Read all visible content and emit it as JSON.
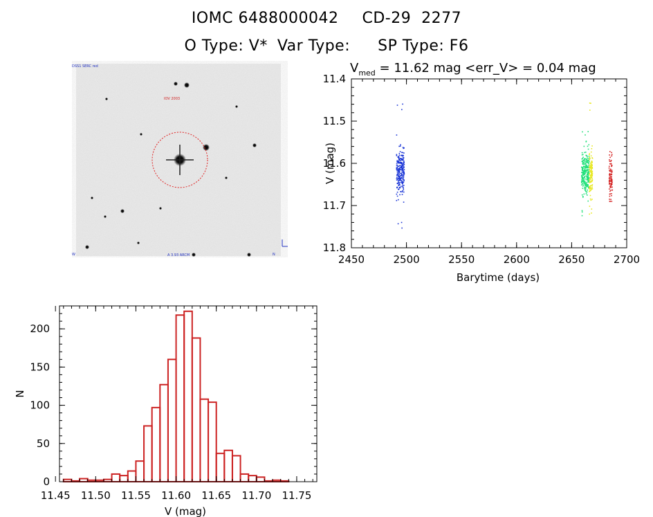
{
  "header": {
    "object_id": "IOMC 6488000042",
    "alt_name": "CD-29  2277",
    "o_type": "O Type: V*",
    "var_type": "Var Type:",
    "sp_type": "SP Type: F6"
  },
  "colors": {
    "blue": "#1a35d6",
    "green": "#22e07a",
    "yellow": "#e8e820",
    "red": "#d42020",
    "hist_bar": "#cc2222",
    "circle": "#e02020"
  },
  "chart_data": [
    {
      "type": "image",
      "description_labels": {
        "top_left": "DSS1 SERC red",
        "object_label": "IOV 2003",
        "bottom_center": "A 3.93 ARCM",
        "bottom_left": "W",
        "bottom_right": "N"
      }
    },
    {
      "type": "scatter",
      "title_v": "V",
      "title_sub": "med",
      "title_rest": " = 11.62 mag <err_V> = 0.04 mag",
      "xlabel": "Barytime (days)",
      "ylabel": "V (mag)",
      "xlim": [
        2450,
        2700
      ],
      "ylim": [
        11.8,
        11.4
      ],
      "xticks": [
        "2450",
        "2500",
        "2550",
        "2600",
        "2650",
        "2700"
      ],
      "yticks": [
        "11.4",
        "11.5",
        "11.6",
        "11.7",
        "11.8"
      ],
      "series": [
        {
          "color": "blue",
          "x_range": [
            2491,
            2498
          ],
          "y_center": 11.62,
          "y_min": 11.455,
          "y_max": 11.76,
          "n": 260
        },
        {
          "color": "green",
          "x_range": [
            2659,
            2666
          ],
          "y_center": 11.62,
          "y_min": 11.52,
          "y_max": 11.73,
          "n": 280
        },
        {
          "color": "yellow",
          "x_range": [
            2666,
            2669
          ],
          "y_center": 11.625,
          "y_min": 11.455,
          "y_max": 11.725,
          "n": 120
        },
        {
          "color": "red",
          "x_range": [
            2684,
            2687
          ],
          "y_center": 11.635,
          "y_min": 11.57,
          "y_max": 11.69,
          "n": 90
        }
      ]
    },
    {
      "type": "bar",
      "xlabel": "V (mag)",
      "ylabel": "N",
      "xlim": [
        11.455,
        11.775
      ],
      "ylim": [
        0,
        230
      ],
      "bin_width": 0.01,
      "xticks": [
        "11.45",
        "11.50",
        "11.55",
        "11.60",
        "11.65",
        "11.70",
        "11.75"
      ],
      "yticks": [
        "0",
        "50",
        "100",
        "150",
        "200"
      ],
      "bins_start": [
        11.46,
        11.47,
        11.48,
        11.49,
        11.5,
        11.51,
        11.52,
        11.53,
        11.54,
        11.55,
        11.56,
        11.57,
        11.58,
        11.59,
        11.6,
        11.61,
        11.62,
        11.63,
        11.64,
        11.65,
        11.66,
        11.67,
        11.68,
        11.69,
        11.7,
        11.71,
        11.72,
        11.73,
        11.74,
        11.75
      ],
      "values": [
        3,
        1,
        4,
        2,
        2,
        3,
        10,
        8,
        14,
        27,
        73,
        97,
        127,
        160,
        218,
        223,
        188,
        108,
        104,
        37,
        41,
        34,
        10,
        8,
        6,
        1,
        2,
        1,
        0,
        0
      ]
    }
  ]
}
